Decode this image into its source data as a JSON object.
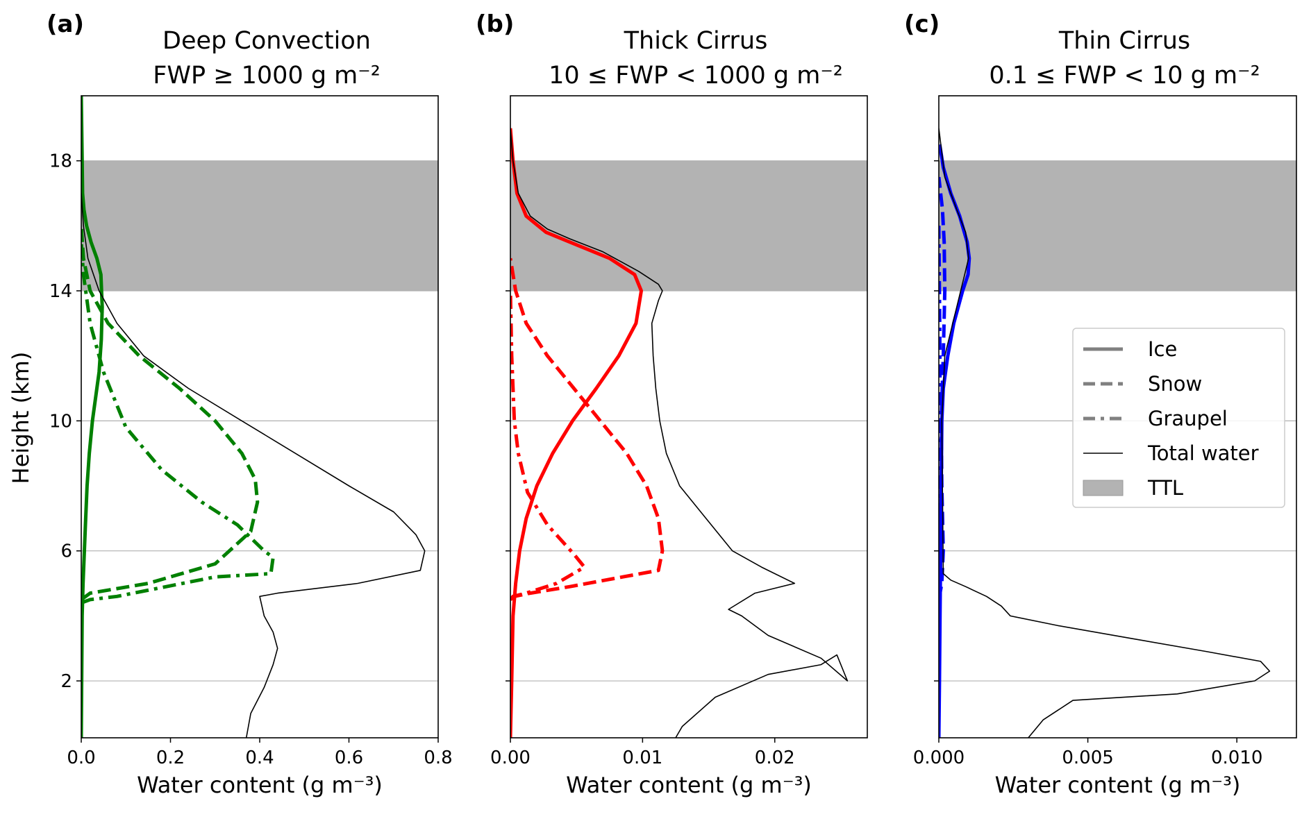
{
  "figure": {
    "ylabel": "Height (km)",
    "legend": {
      "placement": "right, panel (c)",
      "entries": [
        {
          "label": "Ice",
          "style": "solid",
          "color": "#808080"
        },
        {
          "label": "Snow",
          "style": "dashed",
          "color": "#808080"
        },
        {
          "label": "Graupel",
          "style": "dashdot",
          "color": "#808080"
        },
        {
          "label": "Total water",
          "style": "thin",
          "color": "#000000"
        },
        {
          "label": "TTL",
          "style": "patch",
          "color": "#b3b3b3"
        }
      ]
    },
    "colors": {
      "ttl_band": "#b3b3b3",
      "grid": "#b0b0b0",
      "total": "#000000"
    }
  },
  "chart_data": [
    {
      "type": "line",
      "panel": "(a)",
      "title": [
        "Deep Convection",
        "FWP ≥ 1000 g m⁻²"
      ],
      "xlabel": "Water content (g m⁻³)",
      "ylabel": "Height (km)",
      "xlim": [
        0,
        0.8
      ],
      "ylim": [
        0.25,
        20
      ],
      "xticks": [
        "0.0",
        "0.2",
        "0.4",
        "0.6",
        "0.8"
      ],
      "yticks": [
        "2",
        "6",
        "10",
        "14",
        "18"
      ],
      "ttl_band": [
        14,
        18
      ],
      "grid": "horizontal lines at y ticks",
      "color": "#008000",
      "series": [
        {
          "style": "solid",
          "x": [
            0.0,
            0.001,
            0.002,
            0.004,
            0.007,
            0.01,
            0.013,
            0.018,
            0.025,
            0.035,
            0.04,
            0.045,
            0.047,
            0.044,
            0.035,
            0.022,
            0.012,
            0.006,
            0.003,
            0.002,
            0.0
          ],
          "y": [
            0.25,
            2,
            4,
            5,
            6,
            7,
            8,
            9,
            10,
            11,
            11.5,
            12.5,
            13.5,
            14.5,
            15,
            15.5,
            16,
            16.5,
            17,
            18,
            20
          ]
        },
        {
          "style": "dashed",
          "x": [
            0.0,
            0.01,
            0.02,
            0.15,
            0.3,
            0.38,
            0.395,
            0.39,
            0.36,
            0.3,
            0.22,
            0.13,
            0.06,
            0.02,
            0.005,
            0.0
          ],
          "y": [
            4.5,
            4.6,
            4.7,
            5.0,
            5.6,
            6.6,
            7.5,
            8.2,
            9.0,
            10.0,
            11.0,
            12.0,
            13.0,
            14.0,
            15.0,
            16.0
          ]
        },
        {
          "style": "dashdot",
          "x": [
            0.0,
            0.02,
            0.08,
            0.3,
            0.425,
            0.43,
            0.41,
            0.35,
            0.27,
            0.18,
            0.1,
            0.05,
            0.02,
            0.005,
            0.0
          ],
          "y": [
            4.4,
            4.5,
            4.6,
            5.2,
            5.3,
            5.8,
            6.0,
            6.8,
            7.5,
            8.5,
            9.8,
            11.5,
            13.0,
            14.5,
            15.5
          ]
        },
        {
          "style": "total",
          "x": [
            0.37,
            0.38,
            0.41,
            0.43,
            0.44,
            0.43,
            0.41,
            0.4,
            0.44,
            0.62,
            0.76,
            0.77,
            0.75,
            0.7,
            0.6,
            0.48,
            0.36,
            0.24,
            0.14,
            0.08,
            0.04,
            0.015,
            0.005,
            0.0
          ],
          "y": [
            0.25,
            1.0,
            1.8,
            2.5,
            3.0,
            3.5,
            4.0,
            4.6,
            4.7,
            5.0,
            5.4,
            6.0,
            6.5,
            7.2,
            8.0,
            9.0,
            10.0,
            11.0,
            12.0,
            13.0,
            14.0,
            15.0,
            16.0,
            17.0
          ]
        }
      ]
    },
    {
      "type": "line",
      "panel": "(b)",
      "title": [
        "Thick Cirrus",
        "10 ≤ FWP < 1000 g m⁻²"
      ],
      "xlabel": "Water content (g m⁻³)",
      "xlim": [
        0,
        0.027
      ],
      "ylim": [
        0.25,
        20
      ],
      "xticks": [
        "0.00",
        "0.01",
        "0.02"
      ],
      "ttl_band": [
        14,
        18
      ],
      "grid": "horizontal lines at y ticks",
      "color": "#ff0000",
      "series": [
        {
          "style": "solid",
          "x": [
            0.0,
            0.0001,
            0.0002,
            0.0004,
            0.0007,
            0.0012,
            0.002,
            0.0032,
            0.0047,
            0.0065,
            0.0082,
            0.0095,
            0.0099,
            0.0094,
            0.0075,
            0.0045,
            0.0027,
            0.0012,
            0.0005,
            0.0002,
            0.0
          ],
          "y": [
            0.25,
            2.0,
            4.0,
            5.0,
            6.0,
            7.0,
            8.0,
            9.0,
            10.0,
            11.0,
            12.0,
            13.0,
            14.0,
            14.5,
            15.0,
            15.5,
            15.8,
            16.3,
            17.0,
            18.0,
            19.0
          ]
        },
        {
          "style": "dashed",
          "x": [
            0.0,
            0.0003,
            0.0015,
            0.0045,
            0.0085,
            0.0112,
            0.0115,
            0.0112,
            0.0103,
            0.0088,
            0.0068,
            0.0048,
            0.0028,
            0.0012,
            0.0004,
            0.0
          ],
          "y": [
            4.5,
            4.6,
            4.7,
            4.9,
            5.2,
            5.4,
            6.0,
            7.0,
            8.0,
            9.0,
            10.0,
            11.0,
            12.0,
            13.0,
            14.0,
            15.0
          ]
        },
        {
          "style": "dashdot",
          "x": [
            0.0,
            0.0002,
            0.0012,
            0.0035,
            0.0056,
            0.0048,
            0.0028,
            0.0013,
            0.0006,
            0.0003,
            0.0001,
            0.0
          ],
          "y": [
            4.5,
            4.6,
            4.7,
            5.0,
            5.5,
            5.9,
            6.8,
            7.8,
            9.0,
            10.0,
            12.0,
            14.0
          ]
        },
        {
          "style": "total",
          "x": [
            0.0125,
            0.013,
            0.0155,
            0.0195,
            0.0235,
            0.0247,
            0.0255,
            0.0235,
            0.0195,
            0.0175,
            0.0165,
            0.0185,
            0.0215,
            0.019,
            0.0168,
            0.0148,
            0.0128,
            0.0118,
            0.0113,
            0.011,
            0.0108,
            0.0107,
            0.0112,
            0.0115,
            0.0112,
            0.0097,
            0.007,
            0.0045,
            0.0028,
            0.0015,
            0.0006,
            0.0002,
            0.0
          ],
          "y": [
            0.25,
            0.6,
            1.5,
            2.2,
            2.5,
            2.8,
            2.0,
            2.7,
            3.4,
            4.0,
            4.2,
            4.7,
            5.0,
            5.5,
            6.0,
            7.0,
            8.0,
            9.0,
            10.0,
            11.0,
            12.0,
            13.0,
            13.7,
            14.0,
            14.2,
            14.6,
            15.2,
            15.6,
            15.9,
            16.3,
            17.0,
            18.0,
            19.0
          ]
        }
      ]
    },
    {
      "type": "line",
      "panel": "(c)",
      "title": [
        "Thin Cirrus",
        "0.1 ≤ FWP < 10 g m⁻²"
      ],
      "xlabel": "Water content (g m⁻³)",
      "xlim": [
        0,
        0.012
      ],
      "ylim": [
        0.25,
        20
      ],
      "xticks": [
        "0.000",
        "0.005",
        "0.010"
      ],
      "ttl_band": [
        14,
        18
      ],
      "grid": "horizontal lines at y ticks",
      "color": "#0000ff",
      "series": [
        {
          "style": "solid",
          "x": [
            0.0,
            2e-05,
            4e-05,
            6e-05,
            8e-05,
            0.0001,
            0.00015,
            0.0003,
            0.0005,
            0.0008,
            0.00098,
            0.00102,
            0.00095,
            0.0007,
            0.0004,
            0.00015,
            3e-05
          ],
          "y": [
            0.25,
            2.0,
            4.0,
            6.0,
            8.0,
            10.0,
            11.0,
            12.0,
            13.0,
            14.0,
            14.5,
            15.0,
            15.5,
            16.3,
            17.0,
            17.8,
            18.5
          ]
        },
        {
          "style": "dashed",
          "x": [
            0.0,
            0.0001,
            0.00015,
            0.0001,
            8e-05,
            0.00015,
            0.0002,
            0.00018,
            0.00012,
            0.0
          ],
          "y": [
            4.5,
            5.0,
            6.0,
            8.0,
            10.0,
            12.0,
            14.0,
            15.5,
            16.5,
            17.5
          ]
        },
        {
          "style": "dashdot",
          "x": [
            0.0,
            5e-05,
            5e-05,
            3e-05,
            0.0
          ],
          "y": [
            4.5,
            5.5,
            9.0,
            13.0,
            16.0
          ]
        },
        {
          "style": "total",
          "x": [
            0.003,
            0.0035,
            0.0045,
            0.008,
            0.0106,
            0.0111,
            0.0108,
            0.009,
            0.0065,
            0.004,
            0.0024,
            0.0021,
            0.0016,
            0.0009,
            0.0004,
            0.00015,
            0.0001,
            0.0002,
            0.0006,
            0.001,
            0.0009,
            0.0006,
            0.0002,
            0.0
          ],
          "y": [
            0.25,
            0.8,
            1.4,
            1.6,
            2.0,
            2.3,
            2.6,
            2.9,
            3.3,
            3.7,
            4.0,
            4.3,
            4.6,
            4.9,
            5.1,
            5.3,
            10.0,
            12.0,
            13.5,
            15.0,
            15.8,
            16.5,
            17.5,
            19.0
          ]
        }
      ]
    }
  ]
}
